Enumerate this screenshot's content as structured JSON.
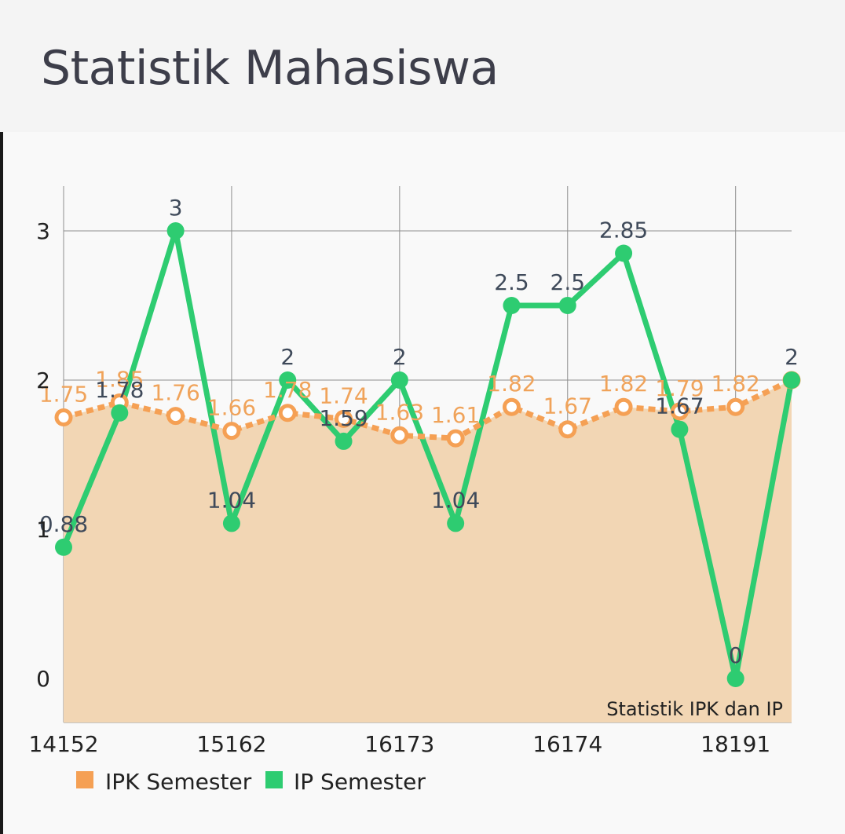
{
  "header": {
    "title": "Statistik Mahasiswa"
  },
  "chart_data": {
    "type": "line",
    "title": "Statistik IPK dan IP",
    "ylim": [
      -0.3,
      3.3
    ],
    "y_ticks": [
      0,
      1,
      2,
      3
    ],
    "x_ticks": [
      "14152",
      "15162",
      "16173",
      "16174",
      "18191"
    ],
    "grid": true,
    "legend_position": "bottom-left",
    "series": [
      {
        "name": "IPK Semester",
        "color": "#f5a054",
        "area_color": "#f2d6b4",
        "values": [
          1.75,
          1.85,
          1.76,
          1.66,
          1.78,
          1.74,
          1.63,
          1.61,
          1.82,
          1.67,
          1.82,
          1.79,
          1.82,
          2
        ],
        "labels": [
          "1.75",
          "1.85",
          "1.76",
          "1.66",
          "1.78",
          "1.74",
          "1.63",
          "1.61",
          "1.82",
          "1.67",
          "1.82",
          "1.79",
          "1.82",
          ""
        ]
      },
      {
        "name": "IP Semester",
        "color": "#2ecc71",
        "values": [
          0.88,
          1.78,
          3,
          1.04,
          2,
          1.59,
          2,
          1.04,
          2.5,
          2.5,
          2.85,
          1.67,
          0,
          2
        ],
        "labels": [
          "0.88",
          "1.78",
          "3",
          "1.04",
          "2",
          "1.59",
          "2",
          "1.04",
          "2.5",
          "2.5",
          "2.85",
          "1.67",
          "0",
          "2"
        ]
      }
    ]
  }
}
